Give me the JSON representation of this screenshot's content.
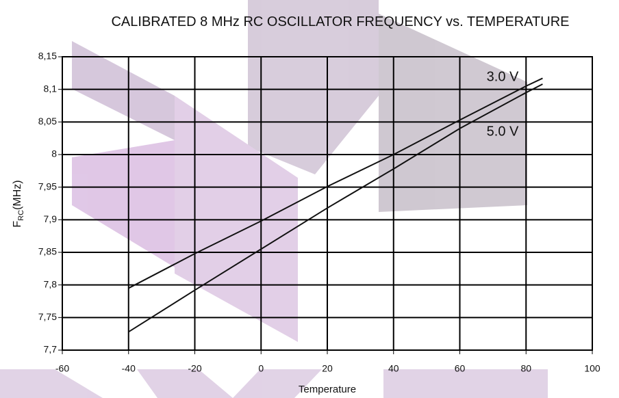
{
  "chart_data": {
    "type": "line",
    "title": "CALIBRATED 8 MHz RC OSCILLATOR FREQUENCY vs. TEMPERATURE",
    "x_label": "Temperature",
    "y_label": {
      "main": "F",
      "sub": "RC",
      "unit": "(MHz)"
    },
    "x": [
      -40,
      -20,
      0,
      20,
      40,
      60,
      80,
      85
    ],
    "series": [
      {
        "name": "3.0 V",
        "color": "#111111",
        "values": [
          7.795,
          7.848,
          7.898,
          7.951,
          8.0,
          8.053,
          8.105,
          8.117
        ]
      },
      {
        "name": "5.0 V",
        "color": "#111111",
        "values": [
          7.728,
          7.792,
          7.855,
          7.918,
          7.978,
          8.04,
          8.095,
          8.108
        ]
      }
    ],
    "xlim": [
      -60,
      100
    ],
    "xticks": [
      -60,
      -40,
      -20,
      0,
      20,
      40,
      60,
      80,
      100
    ],
    "ylim": [
      7.7,
      8.15
    ],
    "yticks": [
      {
        "value": 7.7,
        "label": "7,7"
      },
      {
        "value": 7.75,
        "label": "7,75"
      },
      {
        "value": 7.8,
        "label": "7,8"
      },
      {
        "value": 7.85,
        "label": "7,85"
      },
      {
        "value": 7.9,
        "label": "7,9"
      },
      {
        "value": 7.95,
        "label": "7,95"
      },
      8,
      {
        "value": 8.05,
        "label": "8,05"
      },
      {
        "value": 8.1,
        "label": "8,1"
      },
      {
        "value": 8.15,
        "label": "8,15"
      }
    ],
    "grid": true
  }
}
